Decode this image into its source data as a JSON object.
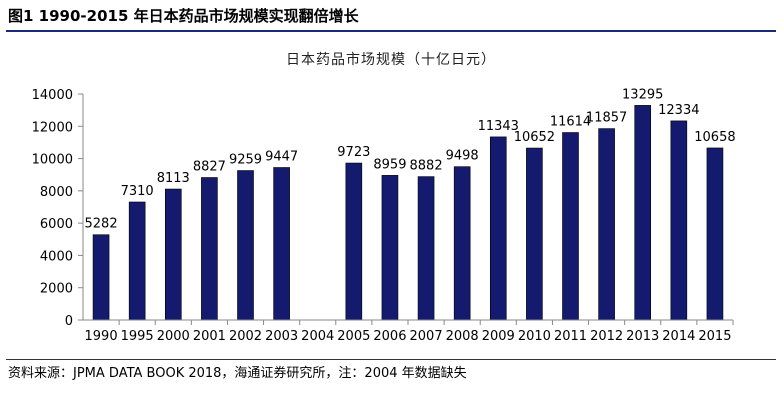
{
  "figure": {
    "title": "图1   1990-2015 年日本药品市场规模实现翻倍增长",
    "source": "资料来源：JPMA DATA BOOK 2018，海通证券研究所，注：2004 年数据缺失"
  },
  "chart_data": {
    "type": "bar",
    "title": "日本药品市场规模（十亿日元）",
    "xlabel": "",
    "ylabel": "",
    "categories": [
      "1990",
      "1995",
      "2000",
      "2001",
      "2002",
      "2003",
      "2004",
      "2005",
      "2006",
      "2007",
      "2008",
      "2009",
      "2010",
      "2011",
      "2012",
      "2013",
      "2014",
      "2015"
    ],
    "values": [
      5282,
      7310,
      8113,
      8827,
      9259,
      9447,
      null,
      9723,
      8959,
      8882,
      9498,
      11343,
      10652,
      11614,
      11857,
      13295,
      12334,
      10658
    ],
    "ylim": [
      0,
      14000
    ],
    "yticks": [
      "0",
      "2000",
      "4000",
      "6000",
      "8000",
      "10000",
      "12000",
      "14000"
    ],
    "bar_color": "#141a6e",
    "grid": false,
    "legend": "none"
  }
}
